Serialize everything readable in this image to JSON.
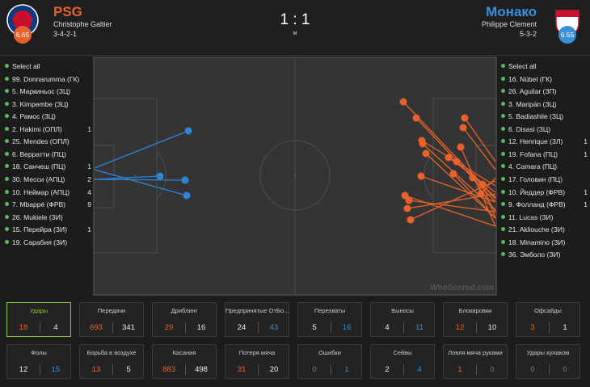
{
  "header": {
    "home": {
      "name": "PSG",
      "coach": "Christophe Galtier",
      "formation": "3-4-2-1",
      "rating": "6.65"
    },
    "score": "1 : 1",
    "status": "м",
    "away": {
      "name": "Монако",
      "coach": "Philippe Clement",
      "formation": "5-3-2",
      "rating": "6.55"
    }
  },
  "home_players": {
    "select_all": "Select all",
    "players": [
      {
        "name": "99. Donnarumma (ГК)"
      },
      {
        "name": "5. Маркиньос (ЗЦ)"
      },
      {
        "name": "3. Kimpembe (ЗЦ)"
      },
      {
        "name": "4. Рамос (ЗЦ)"
      },
      {
        "name": "2. Hakimi (ОПЛ)",
        "count": 1
      },
      {
        "name": "25. Mendes (ОПЛ)"
      },
      {
        "name": "6. Верратти (ПЦ)"
      },
      {
        "name": "18. Санчеш (ПЦ)",
        "count": 1
      },
      {
        "name": "30. Месси (АПЦ)",
        "count": 2
      },
      {
        "name": "10. Неймар (АПЦ)",
        "count": 4
      },
      {
        "name": "7. Mbappé (ФРВ)",
        "count": 9
      },
      {
        "name": "26. Mukiele (ЗИ)"
      },
      {
        "name": "15. Перейра (ЗИ)",
        "count": 1
      },
      {
        "name": "19. Сарабия (ЗИ)"
      }
    ]
  },
  "away_players": {
    "select_all": "Select all",
    "players": [
      {
        "name": "16. Nübel (ГК)"
      },
      {
        "name": "26. Aguilar (ЗП)"
      },
      {
        "name": "3. Maripán (ЗЦ)"
      },
      {
        "name": "5. Badiashile (ЗЦ)"
      },
      {
        "name": "6. Disasi (ЗЦ)"
      },
      {
        "name": "12. Henrique (ЗЛ)",
        "count": 1
      },
      {
        "name": "19. Fofana (ПЦ)",
        "count": 1
      },
      {
        "name": "4. Camara (ПЦ)"
      },
      {
        "name": "17. Головин (ПЦ)"
      },
      {
        "name": "10. Йеддер (ФРВ)",
        "count": 1
      },
      {
        "name": "9. Фолланд (ФРВ)",
        "count": 1
      },
      {
        "name": "11. Lucas (ЗИ)"
      },
      {
        "name": "21. Akliouche (ЗИ)"
      },
      {
        "name": "18. Minamino (ЗИ)"
      },
      {
        "name": "36. Эмболо (ЗИ)"
      }
    ]
  },
  "watermark": "WhoScored.com",
  "stats": [
    {
      "label": "Удары",
      "home": 18,
      "away": 4
    },
    {
      "label": "Передачи",
      "home": 693,
      "away": 341
    },
    {
      "label": "Дриблинг",
      "home": 29,
      "away": 16
    },
    {
      "label": "Предпринятые ОтБо...",
      "home": 24,
      "away": 43
    },
    {
      "label": "Перехваты",
      "home": 5,
      "away": 16
    },
    {
      "label": "Выносы",
      "home": 4,
      "away": 11
    },
    {
      "label": "Блокировки",
      "home": 12,
      "away": 10
    },
    {
      "label": "Офсайды",
      "home": 3,
      "away": 1
    },
    {
      "label": "Фолы",
      "home": 12,
      "away": 15
    },
    {
      "label": "Борьба в воздухе",
      "home": 13,
      "away": 5
    },
    {
      "label": "Касания",
      "home": 883,
      "away": 498
    },
    {
      "label": "Потеря мяча",
      "home": 31,
      "away": 20
    },
    {
      "label": "Ошибки",
      "home": 0,
      "away": 1
    },
    {
      "label": "Сейвы",
      "home": 2,
      "away": 4
    },
    {
      "label": "Ловля мяча руками",
      "home": 1,
      "away": 0
    },
    {
      "label": "Удары кулаком",
      "home": 0,
      "away": 0
    }
  ]
}
